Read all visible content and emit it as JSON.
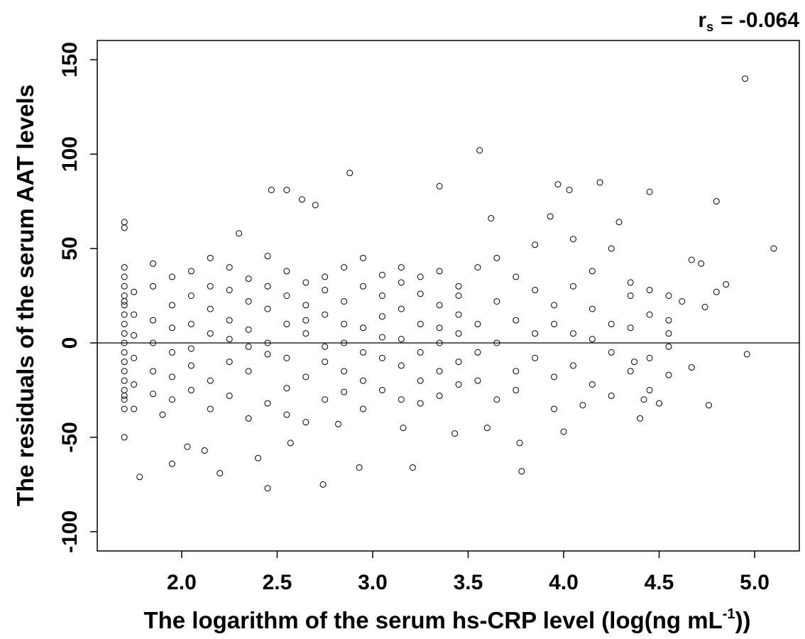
{
  "chart_data": {
    "type": "scatter",
    "annotation": [
      "r",
      "s",
      "= -0.064"
    ],
    "xlabel": [
      "The logarithm of the serum hs-CRP level (log(ng mL",
      "-1",
      "))"
    ],
    "ylabel": "The residuals of the serum AAT levels",
    "xlim": [
      1.558,
      5.234
    ],
    "ylim": [
      -110.2,
      160.2
    ],
    "xticks": [
      {
        "value": 2,
        "label": "2.0"
      },
      {
        "value": 2.5,
        "label": "2.5"
      },
      {
        "value": 3,
        "label": "3.0"
      },
      {
        "value": 3.5,
        "label": "3.5"
      },
      {
        "value": 4,
        "label": "4.0"
      },
      {
        "value": 4.5,
        "label": "4.5"
      },
      {
        "value": 5,
        "label": "5.0"
      }
    ],
    "yticks": [
      -100,
      -50,
      0,
      50,
      100,
      150
    ],
    "hline": 0,
    "color": "#000000",
    "series": [
      {
        "x": [
          4.95,
          3.56,
          2.88,
          2.47,
          2.55,
          2.63,
          3.35,
          3.97,
          4.19,
          4.03,
          4.45,
          4.8,
          5.1,
          4.96,
          4.76,
          3.78,
          3.77,
          2.74,
          2.45,
          1.78,
          1.95,
          2.2,
          2.93,
          3.21,
          4.5,
          4.4,
          4.0,
          1.7,
          1.7,
          1.7,
          2.7,
          2.3,
          3.62,
          3.93,
          4.29,
          4.72,
          4.67,
          4.62,
          4.74,
          4.85,
          4.8,
          4.55,
          4.67,
          4.42,
          4.37,
          4.1,
          3.6,
          3.43,
          3.16,
          2.57,
          2.4,
          2.12,
          2.03,
          2.82,
          1.9,
          1.7,
          1.7,
          1.7,
          1.7,
          1.7,
          1.7,
          1.7,
          1.7,
          1.7,
          1.7,
          1.7,
          1.7,
          1.7,
          1.7,
          1.7,
          1.7,
          1.7,
          1.7,
          1.75,
          1.75,
          1.75,
          1.75,
          1.75,
          1.75,
          1.85,
          1.85,
          1.85,
          1.85,
          1.85,
          1.85,
          1.95,
          1.95,
          1.95,
          1.95,
          1.95,
          1.95,
          2.05,
          2.05,
          2.05,
          2.05,
          2.05,
          2.05,
          2.15,
          2.15,
          2.15,
          2.15,
          2.15,
          2.15,
          2.25,
          2.25,
          2.25,
          2.25,
          2.25,
          2.25,
          2.35,
          2.35,
          2.35,
          2.35,
          2.35,
          2.35,
          2.45,
          2.45,
          2.45,
          2.45,
          2.45,
          2.45,
          2.55,
          2.55,
          2.55,
          2.55,
          2.55,
          2.55,
          2.65,
          2.65,
          2.65,
          2.65,
          2.65,
          2.65,
          2.75,
          2.75,
          2.75,
          2.75,
          2.75,
          2.75,
          2.85,
          2.85,
          2.85,
          2.85,
          2.85,
          2.85,
          2.95,
          2.95,
          2.95,
          2.95,
          2.95,
          2.95,
          3.05,
          3.05,
          3.05,
          3.05,
          3.05,
          3.05,
          3.15,
          3.15,
          3.15,
          3.15,
          3.15,
          3.15,
          3.25,
          3.25,
          3.25,
          3.25,
          3.25,
          3.25,
          3.35,
          3.35,
          3.35,
          3.35,
          3.35,
          3.35,
          3.45,
          3.45,
          3.45,
          3.45,
          3.45,
          3.45,
          3.55,
          3.55,
          3.55,
          3.55,
          3.65,
          3.65,
          3.65,
          3.65,
          3.75,
          3.75,
          3.75,
          3.75,
          3.85,
          3.85,
          3.85,
          3.85,
          3.95,
          3.95,
          3.95,
          3.95,
          4.05,
          4.05,
          4.05,
          4.05,
          4.15,
          4.15,
          4.15,
          4.15,
          4.25,
          4.25,
          4.25,
          4.25,
          4.35,
          4.35,
          4.35,
          4.35,
          4.45,
          4.45,
          4.45,
          4.45,
          4.55,
          4.55,
          4.55,
          4.55
        ],
        "values": [
          140,
          102,
          90,
          81,
          81,
          76,
          83,
          84,
          85,
          81,
          80,
          75,
          50,
          -6,
          -33,
          -68,
          -53,
          -75,
          -77,
          -71,
          -64,
          -69,
          -66,
          -66,
          -32,
          -40,
          -47,
          -50,
          64,
          61,
          73,
          58,
          66,
          67,
          64,
          42,
          44,
          22,
          19,
          31,
          27,
          -17,
          -13,
          -30,
          -10,
          -33,
          -45,
          -48,
          -45,
          -53,
          -61,
          -57,
          -55,
          -43,
          -38,
          -30,
          -25,
          -20,
          -15,
          -10,
          -5,
          0,
          5,
          10,
          15,
          20,
          25,
          30,
          -28,
          22,
          35,
          40,
          -35,
          -22,
          -8,
          4,
          15,
          27,
          -35,
          30,
          -15,
          0,
          12,
          -27,
          42,
          -30,
          -5,
          8,
          20,
          35,
          -18,
          25,
          -25,
          -3,
          10,
          38,
          -12,
          -20,
          5,
          18,
          -35,
          30,
          45,
          12,
          -28,
          -10,
          28,
          40,
          2,
          -15,
          7,
          22,
          -40,
          34,
          -2,
          18,
          -32,
          -6,
          30,
          46,
          0,
          -24,
          10,
          25,
          -38,
          38,
          -8,
          5,
          -18,
          20,
          -42,
          32,
          12,
          -10,
          15,
          35,
          -30,
          28,
          -2,
          22,
          -26,
          0,
          40,
          -15,
          10,
          -20,
          8,
          30,
          -35,
          45,
          -5,
          14,
          -25,
          -8,
          25,
          36,
          3,
          -30,
          2,
          18,
          -12,
          32,
          40,
          10,
          -20,
          26,
          -5,
          35,
          -32,
          -15,
          20,
          0,
          -28,
          38,
          8,
          25,
          -10,
          5,
          -22,
          30,
          15,
          40,
          -20,
          10,
          -5,
          -30,
          22,
          0,
          45,
          12,
          -15,
          35,
          -25,
          -8,
          28,
          5,
          52,
          20,
          -18,
          -35,
          10,
          5,
          30,
          -12,
          55,
          -22,
          18,
          2,
          38,
          10,
          -28,
          50,
          -5,
          25,
          -15,
          8,
          32,
          -8,
          15,
          28,
          -25,
          12,
          -2,
          25,
          5
        ]
      }
    ]
  }
}
